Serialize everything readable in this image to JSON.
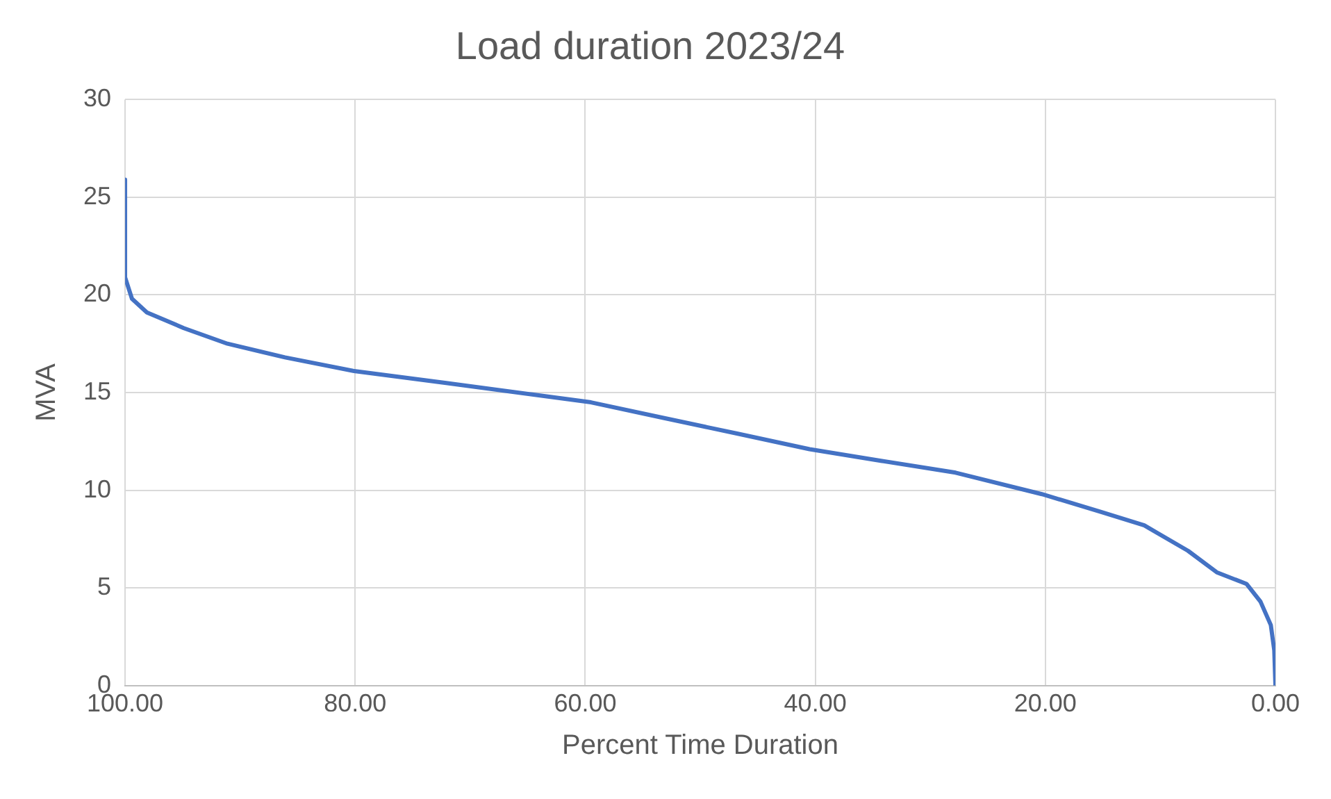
{
  "chart_data": {
    "type": "line",
    "title": "Load duration 2023/24",
    "xlabel": "Percent Time Duration",
    "ylabel": "MVA",
    "x": [
      100,
      100,
      99.4,
      98.1,
      94.9,
      91.1,
      86.1,
      80.1,
      72.2,
      64.6,
      59.5,
      53.2,
      46.8,
      40.5,
      34.2,
      27.8,
      20.3,
      15.2,
      11.4,
      7.6,
      5.1,
      2.5,
      1.3,
      0.4,
      0.1,
      0
    ],
    "series": [
      {
        "color": "#4472c4",
        "values": [
          25.9,
          20.9,
          19.8,
          19.1,
          18.3,
          17.5,
          16.8,
          16.1,
          15.5,
          14.9,
          14.5,
          13.7,
          12.9,
          12.1,
          11.5,
          10.9,
          9.8,
          8.9,
          8.2,
          6.9,
          5.8,
          5.2,
          4.3,
          3.1,
          1.8,
          0
        ]
      }
    ],
    "xlim": [
      100,
      0
    ],
    "xticks": [
      {
        "value": 100,
        "label": "100.00"
      },
      {
        "value": 80,
        "label": "80.00"
      },
      {
        "value": 60,
        "label": "60.00"
      },
      {
        "value": 40,
        "label": "40.00"
      },
      {
        "value": 20,
        "label": "20.00"
      },
      {
        "value": 0,
        "label": "0.00"
      }
    ],
    "ylim": [
      0,
      30
    ],
    "yticks": [
      0,
      5,
      10,
      15,
      20,
      25,
      30
    ],
    "grid": true,
    "legend": false,
    "marker": "none",
    "line_style": "solid"
  }
}
